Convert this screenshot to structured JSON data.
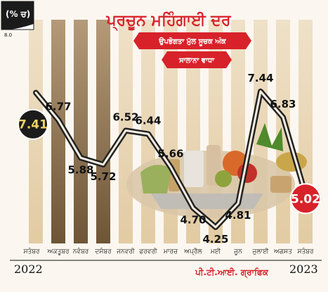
{
  "chart_data": {
    "type": "line",
    "title": "ਪ੍ਰਚੂਨ ਮਹਿੰਗਾਈ ਦਰ",
    "subtitle": "ਉਪਭੋਗਤਾ ਮੁੱਲ ਸੂਚਕ ਅੰਕ",
    "subtitle2": "ਸਾਲਾਨਾ ਵਾਧਾ",
    "unit_label": "(% ਚ)",
    "y_tick_label": "8.0",
    "year_start": "2022",
    "year_end": "2023",
    "credit": "ਪੀ.ਟੀ.ਆਈ. ਗ੍ਰਾਫਿਕ",
    "categories": [
      "ਸਤੰਬਰ",
      "ਅਕਤੂਬਰ",
      "ਨਵੰਬਰ",
      "ਦਸੰਬਰ",
      "ਜਨਵਰੀ",
      "ਫਰਵਰੀ",
      "ਮਾਰਚ",
      "ਅਪ੍ਰੈਲ",
      "ਮਈ",
      "ਜੂਨ",
      "ਜੁਲਾਈ",
      "ਅਗਸਤ",
      "ਸਤੰਬਰ"
    ],
    "values": [
      7.41,
      6.77,
      5.88,
      5.72,
      6.52,
      6.44,
      5.66,
      4.7,
      4.25,
      4.81,
      7.44,
      6.83,
      5.02
    ],
    "value_labels": [
      "7.41",
      "6.77",
      "5.88",
      "5.72",
      "6.52",
      "6.44",
      "5.66",
      "4.70",
      "4.25",
      "4.81",
      "7.44",
      "6.83",
      "5.02"
    ],
    "ylim": [
      4.0,
      8.0
    ],
    "grid": false,
    "colors": {
      "line": "#222222",
      "accent": "#d8222a",
      "first_badge": "#1b1b1b",
      "last_badge": "#d8222a"
    }
  }
}
